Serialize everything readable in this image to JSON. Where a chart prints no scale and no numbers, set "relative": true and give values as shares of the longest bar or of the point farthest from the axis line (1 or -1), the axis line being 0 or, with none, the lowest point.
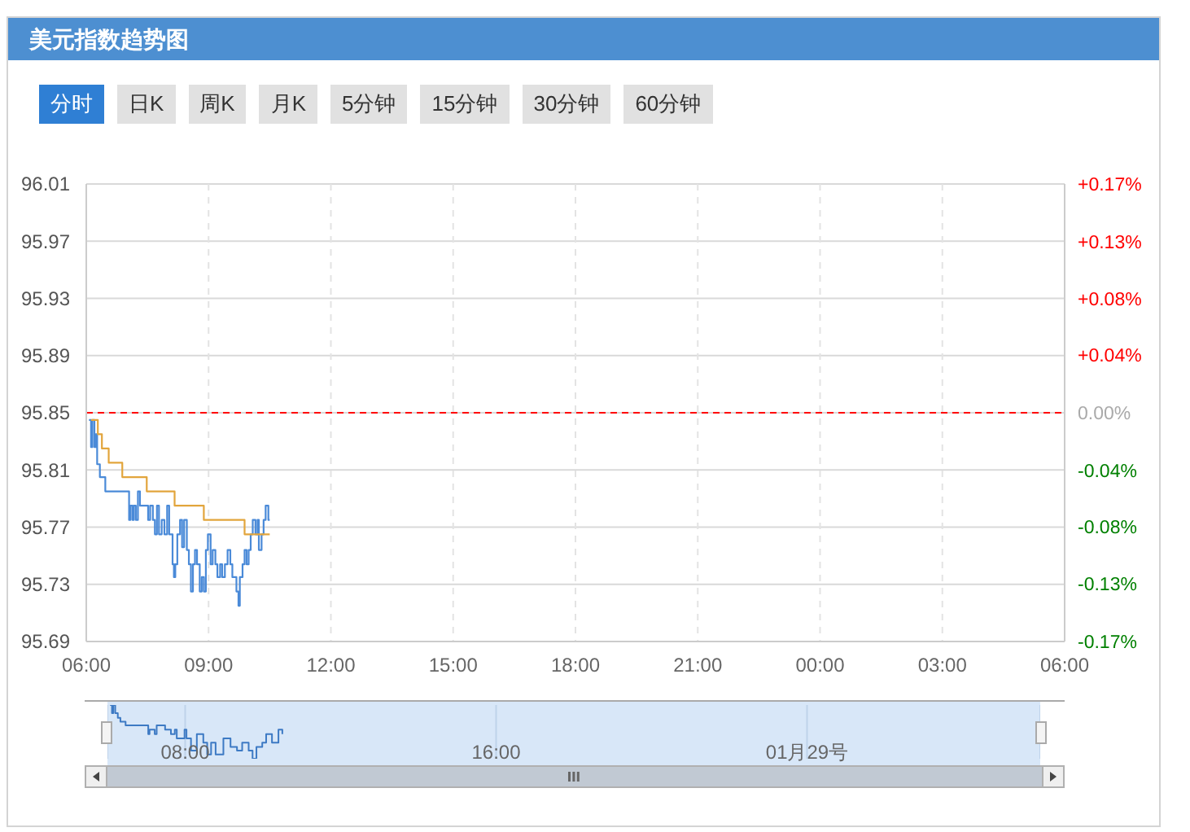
{
  "chart_data": [
    {
      "type": "step",
      "title": "美元指数趋势图",
      "annotations": [
        "分时",
        "日K",
        "周K",
        "月K",
        "5分钟",
        "15分钟",
        "30分钟",
        "60分钟"
      ],
      "xlim": [
        "--01-28T06:00",
        "--01-29T06:00"
      ],
      "xticks": [
        {
          "value": "--01-28T06:00",
          "label": "06:00"
        },
        {
          "value": "--01-28T09:00",
          "label": "09:00"
        },
        {
          "value": "--01-28T12:00",
          "label": "12:00"
        },
        {
          "value": "--01-28T15:00",
          "label": "15:00"
        },
        {
          "value": "--01-28T18:00",
          "label": "18:00"
        },
        {
          "value": "--01-28T21:00",
          "label": "21:00"
        },
        {
          "value": "--01-29T00:00",
          "label": "00:00"
        },
        {
          "value": "--01-29T03:00",
          "label": "03:00"
        },
        {
          "value": "--01-29T06:00",
          "label": "06:00"
        }
      ],
      "ylim": [
        95.69,
        96.01
      ],
      "yticks": [
        95.69,
        95.73,
        95.77,
        95.81,
        95.85,
        95.89,
        95.93,
        95.97,
        96.01
      ],
      "y2lim": [
        -0.167,
        0.167
      ],
      "y2ticks": [
        {
          "value": -0.167,
          "label": "-0.17%"
        },
        {
          "value": -0.125,
          "label": "-0.13%"
        },
        {
          "value": -0.083,
          "label": "-0.08%"
        },
        {
          "value": -0.042,
          "label": "-0.04%"
        },
        {
          "value": 0,
          "label": "0.00%"
        },
        {
          "value": 0.042,
          "label": "+0.04%"
        },
        {
          "value": 0.083,
          "label": "+0.08%"
        },
        {
          "value": 0.125,
          "label": "+0.13%"
        },
        {
          "value": 0.167,
          "label": "+0.17%"
        }
      ],
      "grid": true,
      "marker": "none",
      "ref_lines": [
        {
          "axis": "y",
          "value": 95.85,
          "color": "#ff0000",
          "line_style": "dashed"
        }
      ],
      "series": [
        {
          "color": "#4a8ad8",
          "x": [
            "--01-28T06:04",
            "--01-28T06:06",
            "--01-28T06:07",
            "--01-28T06:09",
            "--01-28T06:11",
            "--01-28T06:12",
            "--01-28T06:14",
            "--01-28T06:16",
            "--01-28T06:19",
            "--01-28T06:20",
            "--01-28T06:26",
            "--01-28T06:28",
            "--01-28T07:01",
            "--01-28T07:03",
            "--01-28T07:05",
            "--01-28T07:08",
            "--01-28T07:10",
            "--01-28T07:13",
            "--01-28T07:16",
            "--01-28T07:19",
            "--01-28T07:29",
            "--01-28T07:31",
            "--01-28T07:34",
            "--01-28T07:38",
            "--01-28T07:41",
            "--01-28T07:44",
            "--01-28T07:47",
            "--01-28T07:51",
            "--01-28T07:55",
            "--01-28T07:59",
            "--01-28T08:02",
            "--01-28T08:07",
            "--01-28T08:09",
            "--01-28T08:11",
            "--01-28T08:14",
            "--01-28T08:18",
            "--01-28T08:21",
            "--01-28T08:24",
            "--01-28T08:28",
            "--01-28T08:31",
            "--01-28T08:34",
            "--01-28T08:37",
            "--01-28T08:40",
            "--01-28T08:43",
            "--01-28T08:47",
            "--01-28T08:50",
            "--01-28T08:53",
            "--01-28T08:56",
            "--01-28T08:59",
            "--01-28T09:03",
            "--01-28T09:06",
            "--01-28T09:10",
            "--01-28T09:13",
            "--01-28T09:17",
            "--01-28T09:20",
            "--01-28T09:24",
            "--01-28T09:28",
            "--01-28T09:32",
            "--01-28T09:35",
            "--01-28T09:38",
            "--01-28T09:41",
            "--01-28T09:44",
            "--01-28T09:46",
            "--01-28T09:50",
            "--01-28T09:53",
            "--01-28T09:56",
            "--01-28T09:59",
            "--01-28T10:02",
            "--01-28T10:05",
            "--01-28T10:09",
            "--01-28T10:12",
            "--01-28T10:14",
            "--01-28T10:18",
            "--01-28T10:21",
            "--01-28T10:24",
            "--01-28T10:28",
            "--01-28T10:30"
          ],
          "values": [
            95.845,
            95.845,
            95.826,
            95.845,
            95.845,
            95.826,
            95.835,
            95.814,
            95.814,
            95.805,
            95.805,
            95.795,
            95.795,
            95.775,
            95.785,
            95.775,
            95.785,
            95.775,
            95.795,
            95.785,
            95.785,
            95.775,
            95.785,
            95.775,
            95.765,
            95.785,
            95.765,
            95.775,
            95.765,
            95.785,
            95.765,
            95.744,
            95.735,
            95.744,
            95.765,
            95.775,
            95.756,
            95.775,
            95.754,
            95.744,
            95.725,
            95.744,
            95.754,
            95.744,
            95.725,
            95.735,
            95.725,
            95.754,
            95.765,
            95.744,
            95.754,
            95.744,
            95.735,
            95.744,
            95.735,
            95.744,
            95.754,
            95.744,
            95.735,
            95.735,
            95.725,
            95.715,
            95.735,
            95.744,
            95.754,
            95.744,
            95.754,
            95.765,
            95.775,
            95.765,
            95.775,
            95.754,
            95.765,
            95.775,
            95.785,
            95.775,
            95.775
          ]
        },
        {
          "color": "#e2a53c",
          "x": [
            "--01-28T06:07",
            "--01-28T06:17",
            "--01-28T06:23",
            "--01-28T06:33",
            "--01-28T06:53",
            "--01-28T07:29",
            "--01-28T08:10",
            "--01-28T08:53",
            "--01-28T09:53",
            "--01-28T10:30"
          ],
          "values": [
            95.845,
            95.835,
            95.825,
            95.815,
            95.805,
            95.795,
            95.785,
            95.775,
            95.765,
            95.765
          ]
        }
      ]
    },
    {
      "type": "step",
      "relative": true,
      "xlim": [
        "--01-28T06:00",
        "--01-29T06:00"
      ],
      "xticks": [
        {
          "value": "--01-28T08:00",
          "label": "08:00"
        },
        {
          "value": "--01-28T16:00",
          "label": "16:00"
        },
        {
          "value": "--01-29T00:00",
          "label": "01月29号"
        }
      ],
      "tick_labels": "x",
      "grid": "x",
      "marker": "none",
      "series": [
        {
          "color": "#3d7ac4",
          "x": [
            "--01-28T06:04",
            "--01-28T06:07",
            "--01-28T06:09",
            "--01-28T06:12",
            "--01-28T06:16",
            "--01-28T06:20",
            "--01-28T06:28",
            "--01-28T07:01",
            "--01-28T07:03",
            "--01-28T07:05",
            "--01-28T07:13",
            "--01-28T07:16",
            "--01-28T07:29",
            "--01-28T07:38",
            "--01-28T07:44",
            "--01-28T07:47",
            "--01-28T07:59",
            "--01-28T08:02",
            "--01-28T08:09",
            "--01-28T08:18",
            "--01-28T08:28",
            "--01-28T08:34",
            "--01-28T08:40",
            "--01-28T08:47",
            "--01-28T08:59",
            "--01-28T09:10",
            "--01-28T09:20",
            "--01-28T09:28",
            "--01-28T09:38",
            "--01-28T09:44",
            "--01-28T09:50",
            "--01-28T09:59",
            "--01-28T10:05",
            "--01-28T10:14",
            "--01-28T10:24",
            "--01-28T10:30"
          ],
          "values": [
            1,
            0.85,
            1,
            0.85,
            0.76,
            0.69,
            0.62,
            0.62,
            0.46,
            0.54,
            0.46,
            0.62,
            0.54,
            0.46,
            0.54,
            0.38,
            0.54,
            0.38,
            0.15,
            0.46,
            0.3,
            0.08,
            0.3,
            0.08,
            0.38,
            0.22,
            0.15,
            0.3,
            0.15,
            0,
            0.22,
            0.3,
            0.46,
            0.3,
            0.54,
            0.46
          ]
        }
      ]
    }
  ]
}
